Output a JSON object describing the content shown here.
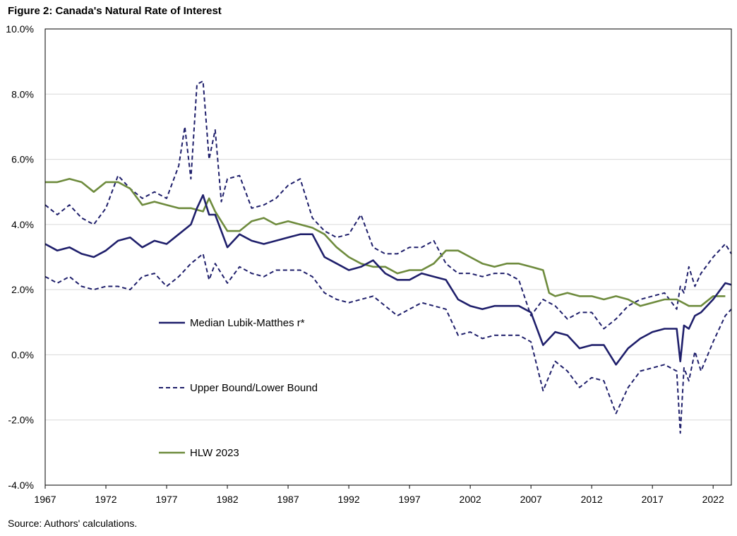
{
  "figure": {
    "title": "Figure 2: Canada's Natural Rate of Interest",
    "source": "Source: Authors' calculations."
  },
  "chart_data": {
    "type": "line",
    "title": "Figure 2: Canada's Natural Rate of Interest",
    "xlabel": "",
    "ylabel": "",
    "xlim": [
      1967,
      2023.5
    ],
    "ylim": [
      -4,
      10
    ],
    "y_ticks": [
      -4,
      -2,
      0,
      2,
      4,
      6,
      8,
      10
    ],
    "y_tick_labels": [
      "-4.0%",
      "-2.0%",
      "0.0%",
      "2.0%",
      "4.0%",
      "6.0%",
      "8.0%",
      "10.0%"
    ],
    "x_ticks": [
      1967,
      1972,
      1977,
      1982,
      1987,
      1992,
      1997,
      2002,
      2007,
      2012,
      2017,
      2022
    ],
    "x_tick_labels": [
      "1967",
      "1972",
      "1977",
      "1982",
      "1987",
      "1992",
      "1997",
      "2002",
      "2007",
      "2012",
      "2017",
      "2022"
    ],
    "grid": "horizontal",
    "legend": "inside-left",
    "colors": {
      "median": "#1f1f6b",
      "bounds": "#1f1f6b",
      "hlw": "#6e8b3d",
      "grid": "#d9d9d9",
      "axis": "#000000"
    },
    "series": [
      {
        "id": "median",
        "name": "Median Lubik-Matthes r*",
        "style": "solid",
        "x": [
          1967,
          1968,
          1969,
          1970,
          1971,
          1972,
          1973,
          1974,
          1975,
          1976,
          1977,
          1978,
          1979,
          1979.5,
          1980,
          1980.5,
          1981,
          1981.5,
          1982,
          1983,
          1984,
          1985,
          1986,
          1987,
          1988,
          1989,
          1990,
          1991,
          1992,
          1993,
          1994,
          1995,
          1996,
          1997,
          1998,
          1999,
          2000,
          2001,
          2002,
          2003,
          2004,
          2005,
          2006,
          2007,
          2008,
          2009,
          2010,
          2011,
          2012,
          2013,
          2014,
          2015,
          2016,
          2017,
          2018,
          2019,
          2019.3,
          2019.6,
          2020,
          2020.5,
          2021,
          2022,
          2023,
          2023.5
        ],
        "y": [
          3.4,
          3.2,
          3.3,
          3.1,
          3.0,
          3.2,
          3.5,
          3.6,
          3.3,
          3.5,
          3.4,
          3.7,
          4.0,
          4.5,
          4.9,
          4.3,
          4.3,
          3.8,
          3.3,
          3.7,
          3.5,
          3.4,
          3.5,
          3.6,
          3.7,
          3.7,
          3.0,
          2.8,
          2.6,
          2.7,
          2.9,
          2.5,
          2.3,
          2.3,
          2.5,
          2.4,
          2.3,
          1.7,
          1.5,
          1.4,
          1.5,
          1.5,
          1.5,
          1.3,
          0.3,
          0.7,
          0.6,
          0.2,
          0.3,
          0.3,
          -0.3,
          0.2,
          0.5,
          0.7,
          0.8,
          0.8,
          -0.2,
          0.9,
          0.8,
          1.2,
          1.3,
          1.7,
          2.2,
          2.15
        ]
      },
      {
        "id": "upper",
        "name": "Upper Bound/Lower Bound",
        "style": "dashed",
        "x": [
          1967,
          1968,
          1969,
          1970,
          1971,
          1972,
          1973,
          1974,
          1975,
          1976,
          1977,
          1978,
          1978.5,
          1979,
          1979.5,
          1980,
          1980.5,
          1981,
          1981.5,
          1982,
          1983,
          1984,
          1985,
          1986,
          1987,
          1988,
          1989,
          1990,
          1991,
          1992,
          1993,
          1994,
          1995,
          1996,
          1997,
          1998,
          1999,
          2000,
          2001,
          2002,
          2003,
          2004,
          2005,
          2006,
          2007,
          2008,
          2009,
          2010,
          2011,
          2012,
          2013,
          2014,
          2015,
          2016,
          2017,
          2018,
          2019,
          2019.3,
          2019.6,
          2020,
          2020.5,
          2021,
          2022,
          2023,
          2023.5
        ],
        "y": [
          4.6,
          4.3,
          4.6,
          4.2,
          4.0,
          4.5,
          5.5,
          5.1,
          4.8,
          5.0,
          4.8,
          5.8,
          7.0,
          5.4,
          8.3,
          8.4,
          6.0,
          6.9,
          4.7,
          5.4,
          5.5,
          4.5,
          4.6,
          4.8,
          5.2,
          5.4,
          4.2,
          3.8,
          3.6,
          3.7,
          4.3,
          3.3,
          3.1,
          3.1,
          3.3,
          3.3,
          3.5,
          2.8,
          2.5,
          2.5,
          2.4,
          2.5,
          2.5,
          2.3,
          1.2,
          1.7,
          1.5,
          1.1,
          1.3,
          1.3,
          0.8,
          1.1,
          1.5,
          1.7,
          1.8,
          1.9,
          1.4,
          2.1,
          1.9,
          2.7,
          2.1,
          2.5,
          3.0,
          3.4,
          3.1
        ]
      },
      {
        "id": "lower",
        "name": "Upper Bound/Lower Bound",
        "style": "dashed",
        "x": [
          1967,
          1968,
          1969,
          1970,
          1971,
          1972,
          1973,
          1974,
          1975,
          1976,
          1977,
          1978,
          1979,
          1980,
          1980.5,
          1981,
          1982,
          1983,
          1984,
          1985,
          1986,
          1987,
          1988,
          1989,
          1990,
          1991,
          1992,
          1993,
          1994,
          1995,
          1996,
          1997,
          1998,
          1999,
          2000,
          2001,
          2002,
          2003,
          2004,
          2005,
          2006,
          2007,
          2008,
          2009,
          2010,
          2011,
          2012,
          2013,
          2014,
          2015,
          2016,
          2017,
          2018,
          2019,
          2019.3,
          2019.6,
          2020,
          2020.5,
          2021,
          2022,
          2023,
          2023.5
        ],
        "y": [
          2.4,
          2.2,
          2.4,
          2.1,
          2.0,
          2.1,
          2.1,
          2.0,
          2.4,
          2.5,
          2.1,
          2.4,
          2.8,
          3.1,
          2.3,
          2.8,
          2.2,
          2.7,
          2.5,
          2.4,
          2.6,
          2.6,
          2.6,
          2.4,
          1.9,
          1.7,
          1.6,
          1.7,
          1.8,
          1.5,
          1.2,
          1.4,
          1.6,
          1.5,
          1.4,
          0.6,
          0.7,
          0.5,
          0.6,
          0.6,
          0.6,
          0.4,
          -1.1,
          -0.2,
          -0.5,
          -1.0,
          -0.7,
          -0.8,
          -1.8,
          -1.0,
          -0.5,
          -0.4,
          -0.3,
          -0.5,
          -2.4,
          -0.4,
          -0.8,
          0.1,
          -0.5,
          0.4,
          1.2,
          1.4
        ]
      },
      {
        "id": "hlw",
        "name": "HLW 2023",
        "style": "solid",
        "x": [
          1967,
          1968,
          1969,
          1970,
          1971,
          1972,
          1973,
          1974,
          1975,
          1976,
          1977,
          1978,
          1979,
          1980,
          1980.5,
          1981,
          1982,
          1983,
          1984,
          1985,
          1986,
          1987,
          1988,
          1989,
          1990,
          1991,
          1992,
          1993,
          1994,
          1995,
          1996,
          1997,
          1998,
          1999,
          2000,
          2001,
          2002,
          2003,
          2004,
          2005,
          2006,
          2007,
          2008,
          2008.5,
          2009,
          2010,
          2011,
          2012,
          2013,
          2014,
          2015,
          2016,
          2017,
          2018,
          2019,
          2020,
          2021,
          2022,
          2023
        ],
        "y": [
          5.3,
          5.3,
          5.4,
          5.3,
          5.0,
          5.3,
          5.3,
          5.1,
          4.6,
          4.7,
          4.6,
          4.5,
          4.5,
          4.4,
          4.8,
          4.4,
          3.8,
          3.8,
          4.1,
          4.2,
          4.0,
          4.1,
          4.0,
          3.9,
          3.7,
          3.3,
          3.0,
          2.8,
          2.7,
          2.7,
          2.5,
          2.6,
          2.6,
          2.8,
          3.2,
          3.2,
          3.0,
          2.8,
          2.7,
          2.8,
          2.8,
          2.7,
          2.6,
          1.9,
          1.8,
          1.9,
          1.8,
          1.8,
          1.7,
          1.8,
          1.7,
          1.5,
          1.6,
          1.7,
          1.7,
          1.5,
          1.5,
          1.8,
          1.8
        ]
      }
    ],
    "legend_entries": [
      {
        "series": "median",
        "label": "Median Lubik-Matthes r*"
      },
      {
        "series": "upper",
        "label": "Upper Bound/Lower Bound"
      },
      {
        "series": "hlw",
        "label": "HLW 2023"
      }
    ]
  }
}
